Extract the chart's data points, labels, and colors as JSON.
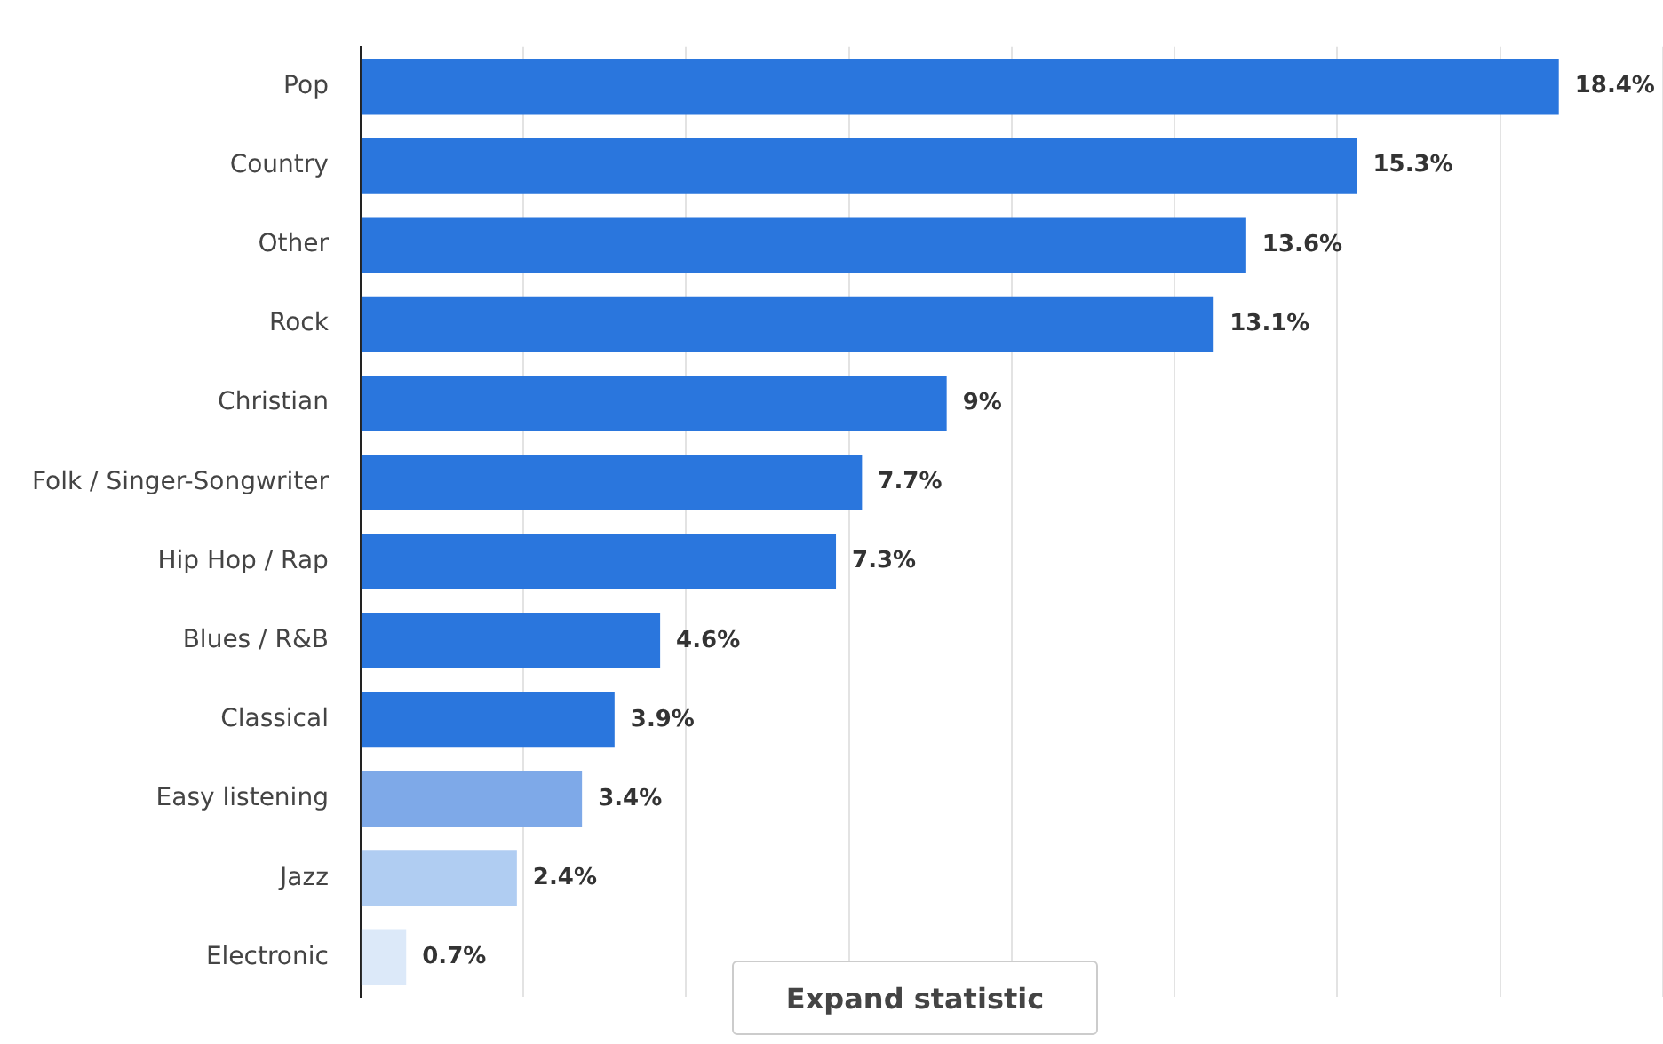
{
  "chart_data": {
    "type": "bar",
    "orientation": "horizontal",
    "categories": [
      "Pop",
      "Country",
      "Other",
      "Rock",
      "Christian",
      "Folk / Singer-Songwriter",
      "Hip Hop / Rap",
      "Blues / R&B",
      "Classical",
      "Easy listening",
      "Jazz",
      "Electronic"
    ],
    "values": [
      18.4,
      15.3,
      13.6,
      13.1,
      9,
      7.7,
      7.3,
      4.6,
      3.9,
      3.4,
      2.4,
      0.7
    ],
    "colors": [
      "#2a76dd",
      "#2a76dd",
      "#2a76dd",
      "#2a76dd",
      "#2a76dd",
      "#2a76dd",
      "#2a76dd",
      "#2a76dd",
      "#2a76dd",
      "#7ea9e8",
      "#b0cdf2",
      "#dce9f9"
    ],
    "value_labels": [
      "18.4%",
      "15.3%",
      "13.6%",
      "13.1%",
      "9%",
      "7.7%",
      "7.3%",
      "4.6%",
      "3.9%",
      "3.4%",
      "2.4%",
      "0.7%"
    ],
    "xlim": [
      0,
      20
    ],
    "xticks": [
      {
        "value": 0,
        "label": null
      },
      {
        "value": 2.5,
        "label": null
      },
      {
        "value": 5,
        "label": null
      },
      {
        "value": 7.5,
        "label": null
      },
      {
        "value": 10,
        "label": null
      },
      {
        "value": 12.5,
        "label": null
      },
      {
        "value": 15,
        "label": null
      },
      {
        "value": 17.5,
        "label": null
      },
      {
        "value": 20,
        "label": null
      }
    ],
    "grid": "x",
    "legend": false,
    "tick_labels": "y",
    "annotations": [
      "Expand statistic"
    ]
  }
}
